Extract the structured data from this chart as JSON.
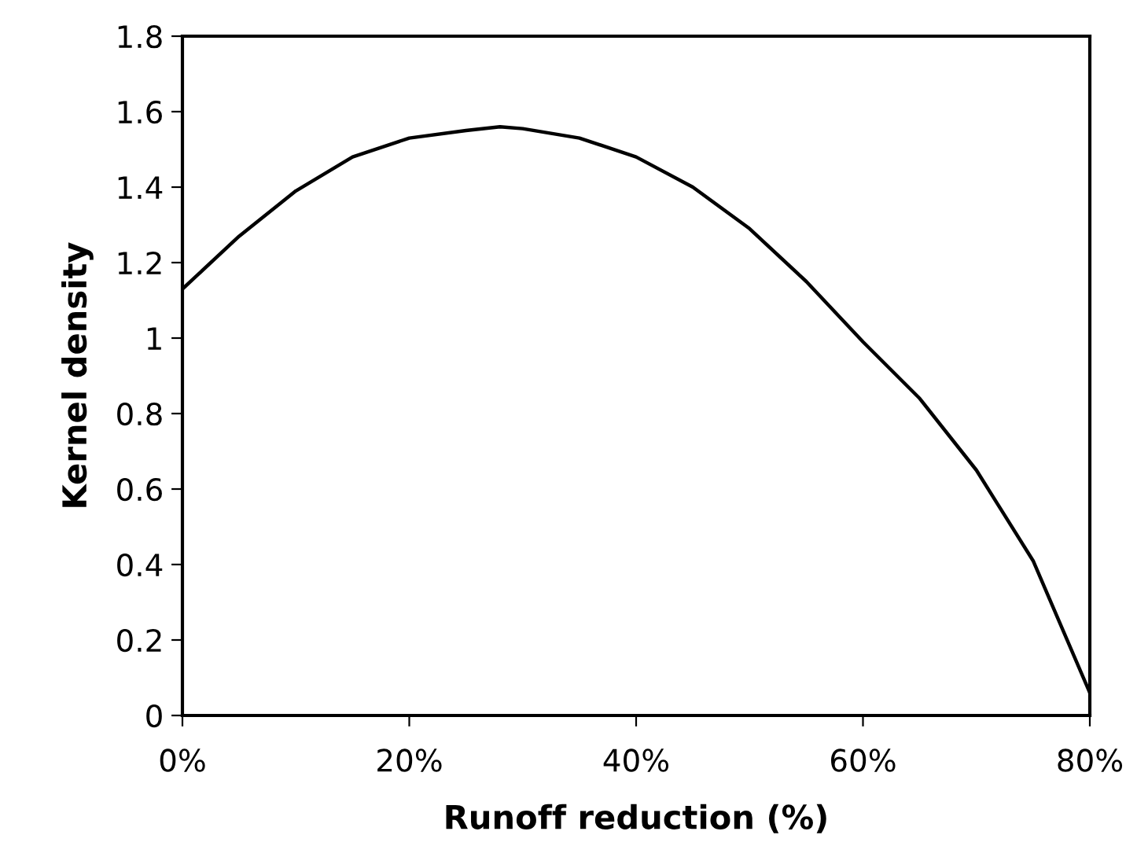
{
  "chart_data": {
    "type": "line",
    "xlabel": "Runoff reduction (%)",
    "ylabel": "Kernel density",
    "x": [
      0,
      5,
      10,
      15,
      20,
      25,
      28,
      30,
      35,
      40,
      45,
      50,
      55,
      60,
      65,
      70,
      75,
      80
    ],
    "series": [
      {
        "color": "#000000",
        "values": [
          1.13,
          1.27,
          1.39,
          1.48,
          1.53,
          1.55,
          1.56,
          1.555,
          1.53,
          1.48,
          1.4,
          1.29,
          1.15,
          0.99,
          0.84,
          0.65,
          0.41,
          0.06
        ]
      }
    ],
    "xlim": [
      0,
      80
    ],
    "xticks": [
      {
        "value": 0,
        "label": "0%"
      },
      {
        "value": 20,
        "label": "20%"
      },
      {
        "value": 40,
        "label": "40%"
      },
      {
        "value": 60,
        "label": "60%"
      },
      {
        "value": 80,
        "label": "80%"
      }
    ],
    "ylim": [
      0,
      1.8
    ],
    "yticks": [
      0,
      0.2,
      0.4,
      0.6,
      0.8,
      1,
      1.2,
      1.4,
      1.6,
      1.8
    ],
    "grid": false,
    "legend": false,
    "marker": "none",
    "line_style": "solid"
  }
}
